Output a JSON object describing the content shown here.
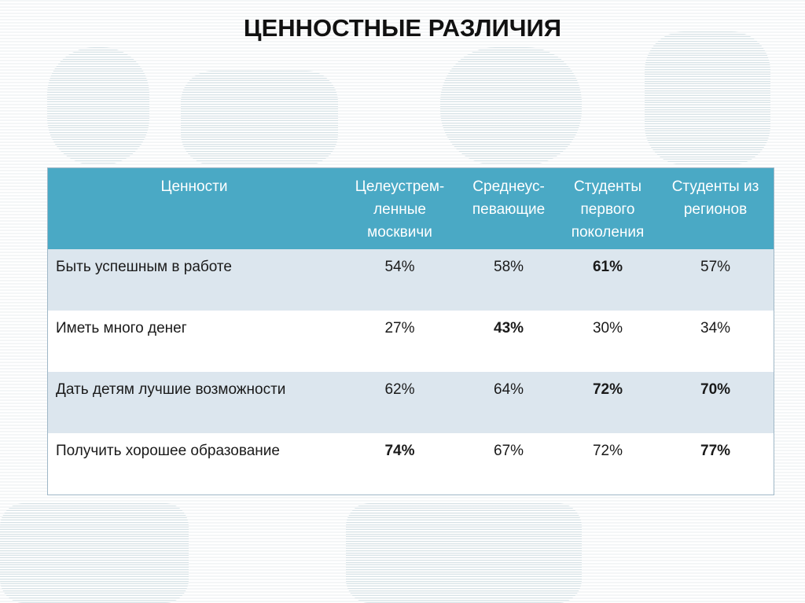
{
  "title": "ЦЕННОСТНЫЕ РАЗЛИЧИЯ",
  "table": {
    "header": [
      "Ценности",
      "Целеустрем-\nленные\nмосквичи",
      "Среднеус-\nпевающие",
      "Студенты\nпервого\nпоколения",
      "Студенты из\nрегионов"
    ],
    "rows": [
      {
        "label": "Быть успешным в работе",
        "cells": [
          "54%",
          "58%",
          "61%",
          "57%"
        ],
        "bold": [
          false,
          false,
          true,
          false
        ]
      },
      {
        "label": "Иметь много денег",
        "cells": [
          "27%",
          "43%",
          "30%",
          "34%"
        ],
        "bold": [
          false,
          true,
          false,
          false
        ]
      },
      {
        "label": "Дать детям лучшие возможности",
        "cells": [
          "62%",
          "64%",
          "72%",
          "70%"
        ],
        "bold": [
          false,
          false,
          true,
          true
        ]
      },
      {
        "label": "Получить хорошее образование",
        "cells": [
          "74%",
          "67%",
          "72%",
          "77%"
        ],
        "bold": [
          true,
          false,
          false,
          true
        ]
      }
    ]
  }
}
